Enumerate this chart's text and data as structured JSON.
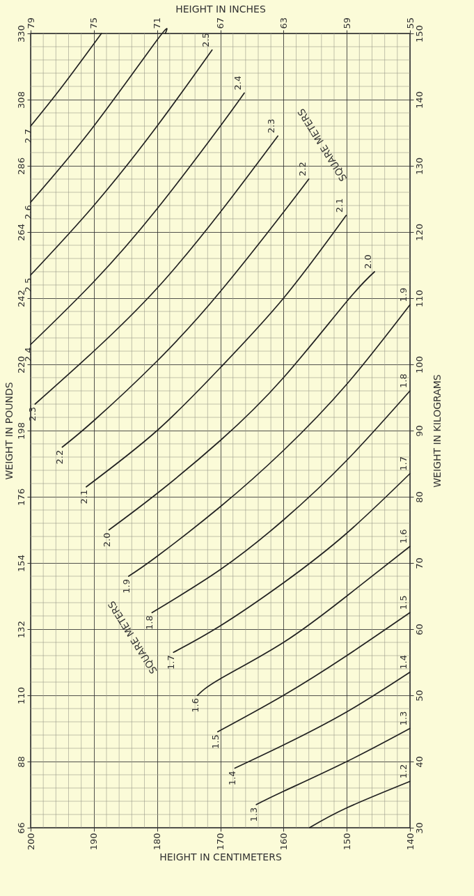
{
  "chart_data": {
    "type": "line",
    "xlabel": "HEIGHT IN CENTIMETERS",
    "x2label": "HEIGHT IN INCHES",
    "ylabel": "WEIGHT IN KILOGRAMS",
    "y2label": "WEIGHT IN POUNDS",
    "xlim": [
      200,
      140
    ],
    "xticks": [
      200,
      190,
      180,
      170,
      160,
      150,
      140
    ],
    "x2lim": [
      79,
      55
    ],
    "x2ticks": [
      79,
      75,
      71,
      67,
      63,
      59,
      55
    ],
    "ylim": [
      30,
      150
    ],
    "yticks": [
      30,
      40,
      50,
      60,
      70,
      80,
      90,
      100,
      110,
      120,
      130,
      140,
      150
    ],
    "y2lim": [
      66,
      330
    ],
    "y2ticks": [
      66,
      88,
      110,
      132,
      154,
      176,
      198,
      220,
      242,
      264,
      286,
      308,
      330
    ],
    "grid": true,
    "legend": false,
    "marker": "none",
    "line_style": "solid",
    "annotations": [
      "SQUARE METERS",
      "SQUARE METERS"
    ],
    "series": [
      {
        "name": "2.7",
        "color": "#222222",
        "x": [
          200,
          195,
          188.8
        ],
        "values": [
          136,
          142,
          150
        ]
      },
      {
        "name": "2.6",
        "color": "#222222",
        "x": [
          200,
          190,
          180,
          178.7
        ],
        "values": [
          124.5,
          136,
          149,
          150
        ]
      },
      {
        "name": "2.5",
        "color": "#222222",
        "x": [
          200,
          190,
          180,
          171.3
        ],
        "values": [
          113.5,
          124,
          136,
          147.5
        ]
      },
      {
        "name": "2.4",
        "color": "#222222",
        "x": [
          200,
          190,
          180,
          170,
          166.2
        ],
        "values": [
          103,
          112.5,
          123.5,
          136,
          141
        ]
      },
      {
        "name": "2.3",
        "color": "#222222",
        "x": [
          199.3,
          190,
          180,
          170,
          160.9
        ],
        "values": [
          94,
          102,
          111.5,
          123,
          134.5
        ]
      },
      {
        "name": "2.2",
        "color": "#222222",
        "x": [
          195,
          190,
          180,
          170,
          160,
          156
        ],
        "values": [
          87.5,
          91.5,
          100.5,
          111,
          123,
          128
        ]
      },
      {
        "name": "2.1",
        "color": "#222222",
        "x": [
          191.2,
          180,
          170,
          160,
          150.1
        ],
        "values": [
          81.5,
          90,
          99.5,
          110,
          122.5
        ]
      },
      {
        "name": "2.0",
        "color": "#222222",
        "x": [
          187.6,
          180,
          170,
          160,
          150,
          145.6
        ],
        "values": [
          75,
          80.5,
          88.5,
          98,
          109.5,
          114
        ]
      },
      {
        "name": "1.9",
        "color": "#222222",
        "x": [
          184.5,
          180,
          170,
          160,
          150,
          140
        ],
        "values": [
          68,
          71,
          78.5,
          87,
          97,
          109
        ]
      },
      {
        "name": "1.8",
        "color": "#222222",
        "x": [
          180.8,
          170,
          160,
          150,
          140
        ],
        "values": [
          62.5,
          69,
          76.5,
          85.5,
          96
        ]
      },
      {
        "name": "1.7",
        "color": "#222222",
        "x": [
          177.4,
          170,
          160,
          150,
          140
        ],
        "values": [
          56.5,
          60.5,
          67,
          74.5,
          83.5
        ]
      },
      {
        "name": "1.6",
        "color": "#222222",
        "x": [
          173.6,
          170,
          160,
          150,
          140
        ],
        "values": [
          50,
          52.5,
          58,
          65,
          72.5
        ]
      },
      {
        "name": "1.5",
        "color": "#222222",
        "x": [
          170.4,
          160,
          150,
          140
        ],
        "values": [
          44.5,
          50,
          56,
          62.5
        ]
      },
      {
        "name": "1.4",
        "color": "#222222",
        "x": [
          167.7,
          160,
          150,
          140
        ],
        "values": [
          39,
          42.5,
          47.5,
          53.5
        ]
      },
      {
        "name": "1.3",
        "color": "#222222",
        "x": [
          164.3,
          160,
          150,
          140
        ],
        "values": [
          33.5,
          35.5,
          40,
          45
        ]
      },
      {
        "name": "1.2",
        "color": "#222222",
        "x": [
          155.9,
          150,
          140
        ],
        "values": [
          30,
          33,
          37
        ]
      }
    ]
  }
}
